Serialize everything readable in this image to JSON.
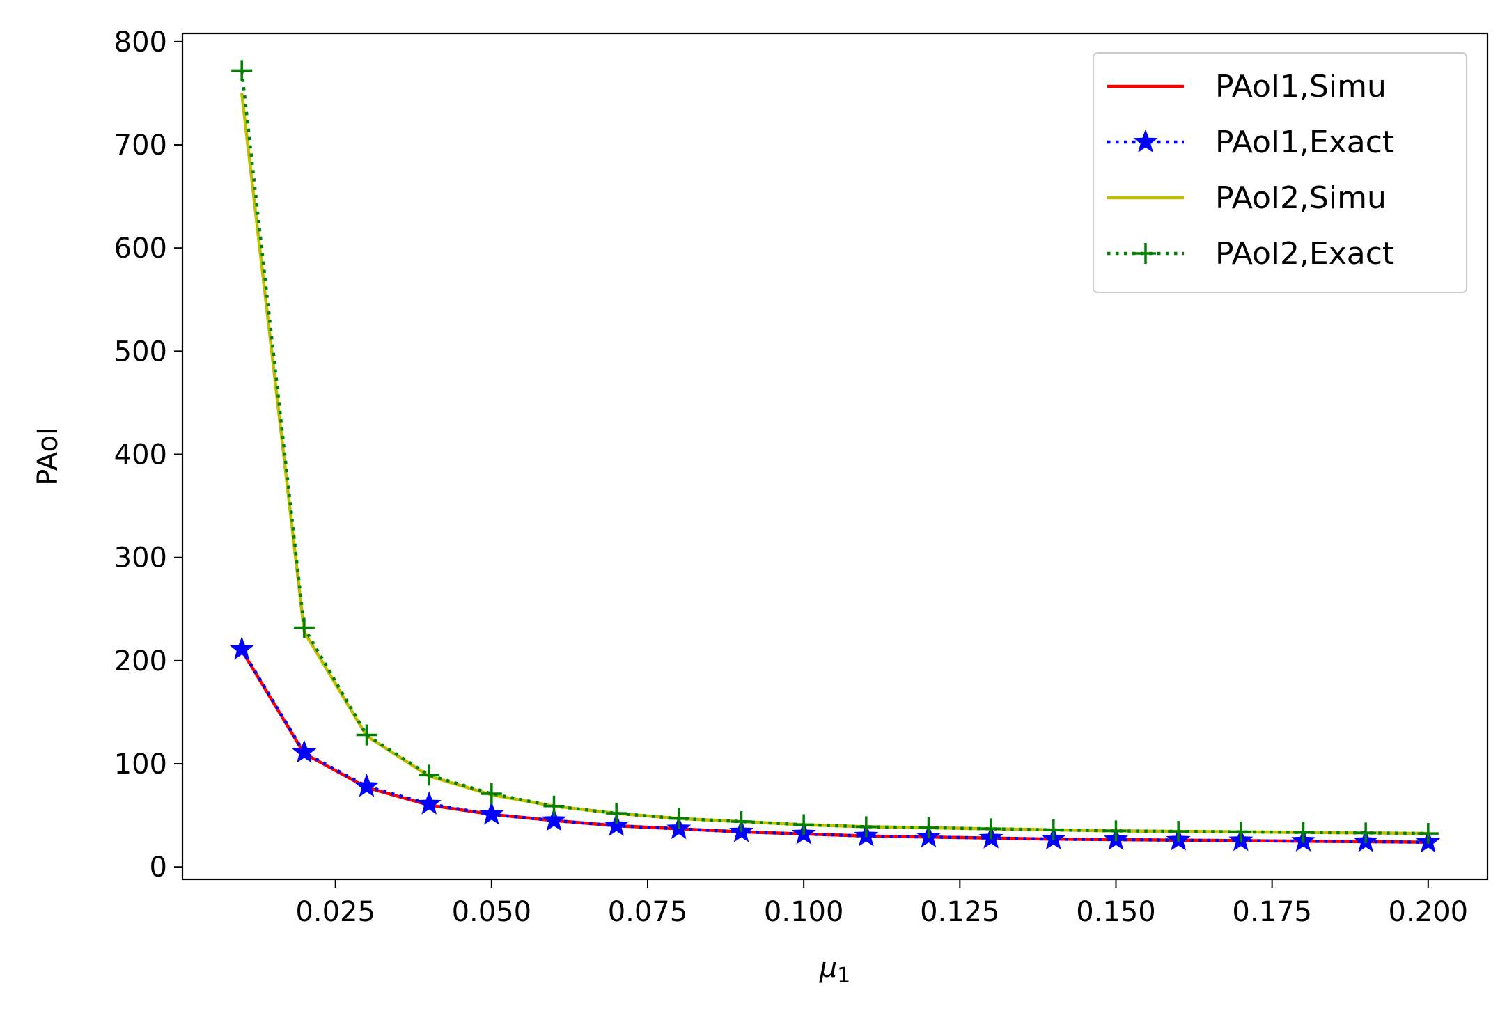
{
  "chart_data": {
    "type": "line",
    "xlabel_symbol": "μ",
    "xlabel_subscript": "1",
    "ylabel": "PAoI",
    "xlim": [
      0.0005,
      0.2095
    ],
    "ylim": [
      -12,
      808
    ],
    "xticks": [
      0.025,
      0.05,
      0.075,
      0.1,
      0.125,
      0.15,
      0.175,
      0.2
    ],
    "xtick_labels": [
      "0.025",
      "0.050",
      "0.075",
      "0.100",
      "0.125",
      "0.150",
      "0.175",
      "0.200"
    ],
    "yticks": [
      0,
      100,
      200,
      300,
      400,
      500,
      600,
      700,
      800
    ],
    "ytick_labels": [
      "0",
      "100",
      "200",
      "300",
      "400",
      "500",
      "600",
      "700",
      "800"
    ],
    "grid": false,
    "legend_position": "top-right",
    "x": [
      0.01,
      0.02,
      0.03,
      0.04,
      0.05,
      0.06,
      0.07,
      0.08,
      0.09,
      0.1,
      0.11,
      0.12,
      0.13,
      0.14,
      0.15,
      0.16,
      0.17,
      0.18,
      0.19,
      0.2
    ],
    "series": [
      {
        "name": "PAoI1,Simu",
        "color": "#ff0000",
        "style": "solid",
        "marker": "none",
        "values": [
          210,
          110,
          77,
          60,
          51,
          45,
          40,
          37,
          34,
          32,
          30,
          29,
          28,
          27,
          26.5,
          26,
          25.5,
          25,
          24.5,
          24
        ]
      },
      {
        "name": "PAoI1,Exact",
        "color": "#0000ff",
        "style": "dotted",
        "marker": "star",
        "values": [
          211,
          111,
          78,
          61,
          51,
          45,
          40,
          37,
          34,
          32,
          30,
          29,
          28,
          27,
          26.5,
          26,
          25.5,
          25,
          24.5,
          24
        ]
      },
      {
        "name": "PAoI2,Simu",
        "color": "#bfbf00",
        "style": "solid",
        "marker": "none",
        "values": [
          750,
          228,
          127,
          88,
          70,
          59,
          52,
          47,
          44,
          41,
          39,
          38,
          37,
          36,
          35,
          34.5,
          34,
          33.5,
          33,
          32.5
        ]
      },
      {
        "name": "PAoI2,Exact",
        "color": "#008000",
        "style": "dotted",
        "marker": "plus",
        "values": [
          772,
          232,
          128,
          89,
          71,
          59,
          52,
          47,
          44,
          41,
          39,
          38,
          37,
          36,
          35,
          34.5,
          34,
          33.5,
          33,
          32.5
        ]
      }
    ]
  }
}
